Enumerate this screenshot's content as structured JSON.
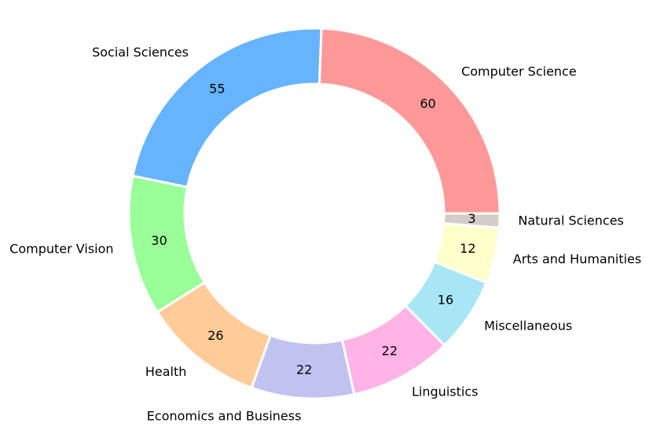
{
  "chart_data": {
    "type": "donut",
    "categories": [
      "Computer Science",
      "Social Sciences",
      "Computer Vision",
      "Health",
      "Economics and Business",
      "Linguistics",
      "Miscellaneous",
      "Arts and Humanities",
      "Natural Sciences"
    ],
    "values": [
      60,
      55,
      30,
      26,
      22,
      22,
      16,
      12,
      3
    ],
    "colors": [
      "#ff9999",
      "#66b3ff",
      "#99ff99",
      "#ffcc99",
      "#c2c2f0",
      "#ffb3e6",
      "#a6e6f5",
      "#ffffcc",
      "#d3ccc8"
    ]
  }
}
